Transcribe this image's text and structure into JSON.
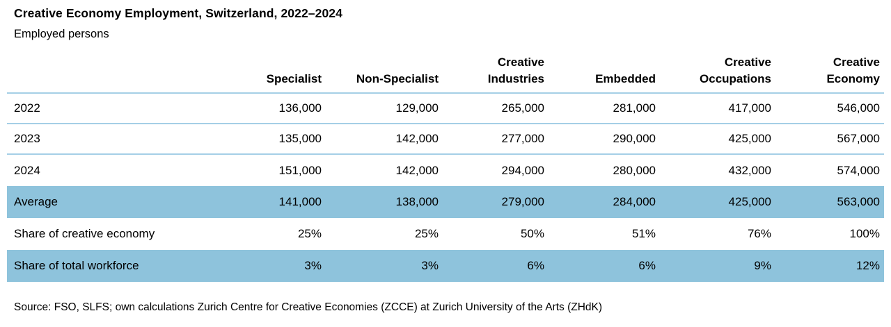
{
  "colors": {
    "highlight_row": "#8ec3dc",
    "separator": "#a5cfe6",
    "text": "#000000",
    "background": "#ffffff"
  },
  "chart_data": {
    "type": "table",
    "title": "Creative Economy Employment, Switzerland, 2022–2024",
    "subtitle": "Employed persons",
    "columns": [
      "Specialist",
      "Non-Specialist",
      "Creative\nIndustries",
      "Embedded",
      "Creative\nOccupations",
      "Creative\nEconomy"
    ],
    "rows": [
      {
        "label": "2022",
        "values": [
          "136,000",
          "129,000",
          "265,000",
          "281,000",
          "417,000",
          "546,000"
        ],
        "highlight": false,
        "separator": true
      },
      {
        "label": "2023",
        "values": [
          "135,000",
          "142,000",
          "277,000",
          "290,000",
          "425,000",
          "567,000"
        ],
        "highlight": false,
        "separator": true
      },
      {
        "label": "2024",
        "values": [
          "151,000",
          "142,000",
          "294,000",
          "280,000",
          "432,000",
          "574,000"
        ],
        "highlight": false,
        "separator": false
      },
      {
        "label": "Average",
        "values": [
          "141,000",
          "138,000",
          "279,000",
          "284,000",
          "425,000",
          "563,000"
        ],
        "highlight": true,
        "separator": false
      },
      {
        "label": "Share of creative economy",
        "values": [
          "25%",
          "25%",
          "50%",
          "51%",
          "76%",
          "100%"
        ],
        "highlight": false,
        "separator": false
      },
      {
        "label": "Share of total workforce",
        "values": [
          "3%",
          "3%",
          "6%",
          "6%",
          "9%",
          "12%"
        ],
        "highlight": true,
        "separator": false
      }
    ],
    "source": "Source: FSO, SLFS; own calculations Zurich Centre for Creative Economies (ZCCE) at Zurich University of the Arts (ZHdK)"
  }
}
